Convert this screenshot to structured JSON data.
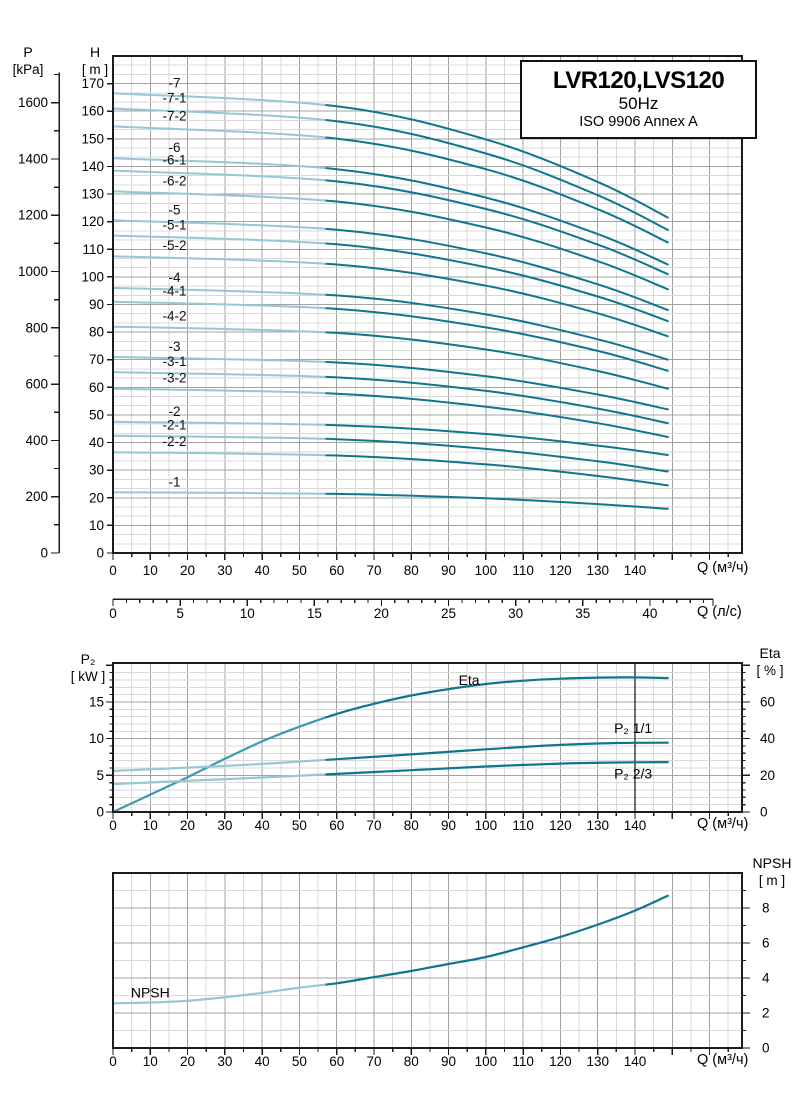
{
  "title_box": {
    "model": "LVR120,LVS120",
    "frequency": "50Hz",
    "standard": "ISO 9906 Annex A"
  },
  "colors": {
    "curve_dark": "#0f768e",
    "curve_light": "#96c7d2",
    "eta_light": "#3d9ab0",
    "grid_minor": "#d9d9d9",
    "grid_major": "#a3a3a3",
    "frame": "#1c1c1c",
    "marker": "#222222"
  },
  "chart_data": [
    {
      "id": "head",
      "type": "line",
      "title": "Head curves H(Q) for LVR120/LVS120 stage variants",
      "q_axis": {
        "label": "Q (м³/ч)",
        "tick_step": 10,
        "tick_max": 140,
        "minor_step": 5,
        "max": 168.7
      },
      "q_axis_secondary": {
        "label": "Q (л/с)",
        "tick_step": 5,
        "tick_max": 40,
        "minor_step": 1,
        "minor_max": 44
      },
      "h_axis": {
        "title": "H",
        "unit": "[ m ]",
        "tick_step": 10,
        "tick_max": 170,
        "max": 180
      },
      "p_axis": {
        "title": "P",
        "unit": "[kPa]",
        "tick_step": 200,
        "tick_max": 1600,
        "minor_step": 100,
        "max": 1700,
        "kpa_per_m": 9.81
      },
      "q_end": 148.8,
      "curve_label_q": 16.5,
      "series": [
        {
          "name": "-7",
          "points": [
            [
              0,
              166.5
            ],
            [
              60,
              161.8
            ],
            [
              100,
              149.8
            ],
            [
              130,
              134.4
            ],
            [
              148.8,
              121.5
            ]
          ]
        },
        {
          "name": "-7-1",
          "points": [
            [
              0,
              161.0
            ],
            [
              60,
              156.4
            ],
            [
              100,
              144.7
            ],
            [
              130,
              129.6
            ],
            [
              148.8,
              117.0
            ]
          ]
        },
        {
          "name": "-7-2",
          "points": [
            [
              0,
              154.5
            ],
            [
              60,
              150.1
            ],
            [
              100,
              139.0
            ],
            [
              130,
              124.5
            ],
            [
              148.8,
              112.5
            ]
          ]
        },
        {
          "name": "-6",
          "points": [
            [
              0,
              143.0
            ],
            [
              60,
              139.0
            ],
            [
              100,
              128.7
            ],
            [
              130,
              115.5
            ],
            [
              148.8,
              104.5
            ]
          ]
        },
        {
          "name": "-6-1",
          "points": [
            [
              0,
              138.5
            ],
            [
              60,
              134.6
            ],
            [
              100,
              124.6
            ],
            [
              130,
              111.7
            ],
            [
              148.8,
              101.0
            ]
          ]
        },
        {
          "name": "-6-2",
          "points": [
            [
              0,
              131.0
            ],
            [
              60,
              127.3
            ],
            [
              100,
              117.9
            ],
            [
              130,
              105.7
            ],
            [
              148.8,
              95.5
            ]
          ]
        },
        {
          "name": "-5",
          "points": [
            [
              0,
              120.5
            ],
            [
              60,
              117.1
            ],
            [
              100,
              108.5
            ],
            [
              130,
              97.3
            ],
            [
              148.8,
              88.0
            ]
          ]
        },
        {
          "name": "-5-1",
          "points": [
            [
              0,
              115.0
            ],
            [
              60,
              111.8
            ],
            [
              100,
              103.5
            ],
            [
              130,
              92.9
            ],
            [
              148.8,
              84.0
            ]
          ]
        },
        {
          "name": "-5-2",
          "points": [
            [
              0,
              107.5
            ],
            [
              60,
              104.5
            ],
            [
              100,
              96.8
            ],
            [
              130,
              86.8
            ],
            [
              148.8,
              78.5
            ]
          ]
        },
        {
          "name": "-4",
          "points": [
            [
              0,
              96.0
            ],
            [
              60,
              93.3
            ],
            [
              100,
              86.4
            ],
            [
              130,
              77.4
            ],
            [
              148.8,
              70.0
            ]
          ]
        },
        {
          "name": "-4-1",
          "points": [
            [
              0,
              91.0
            ],
            [
              60,
              88.4
            ],
            [
              100,
              81.7
            ],
            [
              130,
              73.2
            ],
            [
              148.8,
              66.0
            ]
          ]
        },
        {
          "name": "-4-2",
          "points": [
            [
              0,
              82.0
            ],
            [
              60,
              79.7
            ],
            [
              100,
              73.7
            ],
            [
              130,
              65.9
            ],
            [
              148.8,
              59.5
            ]
          ]
        },
        {
          "name": "-3",
          "points": [
            [
              0,
              71.0
            ],
            [
              60,
              69.0
            ],
            [
              100,
              64.0
            ],
            [
              130,
              57.4
            ],
            [
              148.8,
              52.0
            ]
          ]
        },
        {
          "name": "-3-1",
          "points": [
            [
              0,
              65.5
            ],
            [
              60,
              63.6
            ],
            [
              100,
              58.7
            ],
            [
              130,
              52.3
            ],
            [
              148.8,
              47.0
            ]
          ]
        },
        {
          "name": "-3-2",
          "points": [
            [
              0,
              59.5
            ],
            [
              60,
              57.7
            ],
            [
              100,
              53.0
            ],
            [
              130,
              47.0
            ],
            [
              148.8,
              42.0
            ]
          ]
        },
        {
          "name": "-2",
          "points": [
            [
              0,
              47.5
            ],
            [
              60,
              46.3
            ],
            [
              100,
              43.1
            ],
            [
              130,
              38.9
            ],
            [
              148.8,
              35.5
            ]
          ]
        },
        {
          "name": "-2-1",
          "points": [
            [
              0,
              42.5
            ],
            [
              60,
              41.2
            ],
            [
              100,
              37.7
            ],
            [
              130,
              33.2
            ],
            [
              148.8,
              29.5
            ]
          ]
        },
        {
          "name": "-2-2",
          "points": [
            [
              0,
              36.5
            ],
            [
              60,
              35.3
            ],
            [
              100,
              32.1
            ],
            [
              130,
              27.9
            ],
            [
              148.8,
              24.5
            ]
          ]
        },
        {
          "name": "-1",
          "points": [
            [
              0,
              22.0
            ],
            [
              60,
              21.4
            ],
            [
              100,
              19.8
            ],
            [
              130,
              17.7
            ],
            [
              148.8,
              16.0
            ]
          ]
        }
      ]
    },
    {
      "id": "power",
      "type": "line",
      "title": "Shaft power and efficiency",
      "q_axis": {
        "label": "Q (м³/ч)",
        "tick_step": 10,
        "tick_max": 140,
        "minor_step": 5,
        "max": 168.7
      },
      "left_axis": {
        "title": "P₂",
        "unit": "[ kW ]",
        "ticks": [
          0,
          5,
          10,
          15
        ],
        "minor_step": 1,
        "max": 20.31
      },
      "right_axis": {
        "title": "Eta",
        "unit": "[ % ]",
        "ticks": [
          0,
          20,
          40,
          60
        ],
        "minor_step": 4,
        "max": 81.24
      },
      "duty_marker_q": 140,
      "series": [
        {
          "name": "Eta",
          "axis": "right",
          "points": [
            [
              0,
              0
            ],
            [
              10,
              9.5
            ],
            [
              20,
              19
            ],
            [
              30,
              29
            ],
            [
              40,
              38.5
            ],
            [
              50,
              46.5
            ],
            [
              60,
              53.5
            ],
            [
              70,
              59
            ],
            [
              80,
              63.5
            ],
            [
              90,
              67
            ],
            [
              100,
              69.8
            ],
            [
              110,
              71.6
            ],
            [
              120,
              72.7
            ],
            [
              130,
              73.3
            ],
            [
              140,
              73.4
            ],
            [
              148.8,
              73.0
            ]
          ]
        },
        {
          "name": "P₂ 1/1",
          "axis": "left",
          "points": [
            [
              0,
              5.6
            ],
            [
              20,
              6.05
            ],
            [
              40,
              6.55
            ],
            [
              60,
              7.2
            ],
            [
              80,
              7.85
            ],
            [
              100,
              8.55
            ],
            [
              120,
              9.15
            ],
            [
              135,
              9.4
            ],
            [
              148.8,
              9.45
            ]
          ]
        },
        {
          "name": "P₂ 2/3",
          "axis": "left",
          "points": [
            [
              0,
              3.8
            ],
            [
              20,
              4.25
            ],
            [
              40,
              4.7
            ],
            [
              60,
              5.2
            ],
            [
              80,
              5.7
            ],
            [
              100,
              6.2
            ],
            [
              120,
              6.6
            ],
            [
              135,
              6.75
            ],
            [
              148.8,
              6.8
            ]
          ]
        }
      ],
      "annotations": [
        {
          "text": "Eta",
          "q": 95.5,
          "v": 69.2,
          "axis": "right"
        },
        {
          "text": "P₂ 1/1",
          "q": 139.5,
          "v": 10.8,
          "axis": "left"
        },
        {
          "text": "P₂ 2/3",
          "q": 139.5,
          "v": 4.6,
          "axis": "left"
        }
      ]
    },
    {
      "id": "npsh",
      "type": "line",
      "title": "NPSH curve",
      "q_axis": {
        "label": "Q (м³/ч)",
        "tick_step": 10,
        "tick_max": 140,
        "minor_step": 5,
        "max": 168.7
      },
      "right_axis": {
        "title": "NPSH",
        "unit": "[ m ]",
        "ticks": [
          0,
          2,
          4,
          6,
          8
        ],
        "minor_step": 1,
        "max": 10
      },
      "series": [
        {
          "name": "NPSH",
          "axis": "right",
          "points": [
            [
              0,
              2.55
            ],
            [
              10,
              2.6
            ],
            [
              20,
              2.7
            ],
            [
              30,
              2.9
            ],
            [
              40,
              3.15
            ],
            [
              50,
              3.45
            ],
            [
              60,
              3.7
            ],
            [
              70,
              4.05
            ],
            [
              80,
              4.4
            ],
            [
              90,
              4.8
            ],
            [
              100,
              5.2
            ],
            [
              110,
              5.75
            ],
            [
              120,
              6.35
            ],
            [
              130,
              7.05
            ],
            [
              140,
              7.85
            ],
            [
              148.8,
              8.7
            ]
          ]
        }
      ],
      "annotations": [
        {
          "text": "NPSH",
          "q": 10,
          "v": 2.9,
          "axis": "right"
        }
      ]
    }
  ]
}
